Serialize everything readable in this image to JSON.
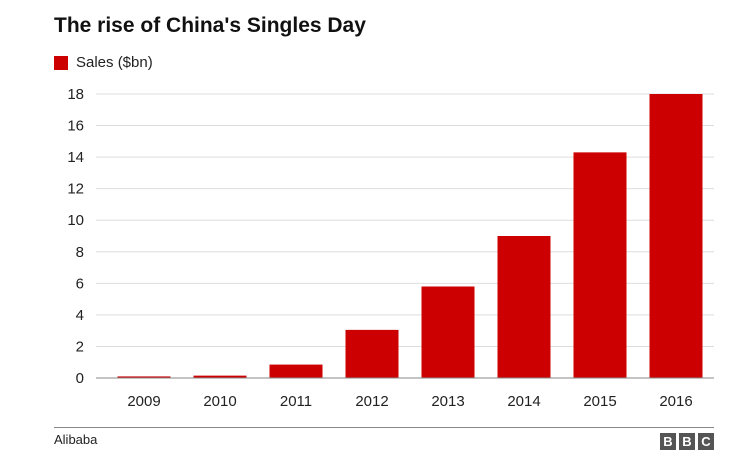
{
  "chart_data": {
    "type": "bar",
    "title": "The rise of China's Singles Day",
    "categories": [
      "2009",
      "2010",
      "2011",
      "2012",
      "2013",
      "2014",
      "2015",
      "2016"
    ],
    "series": [
      {
        "name": "Sales ($bn)",
        "values": [
          0.1,
          0.15,
          0.85,
          3.05,
          5.8,
          9.0,
          14.3,
          18.0
        ]
      }
    ],
    "ylim": [
      0,
      18
    ],
    "yticks": [
      0,
      2,
      4,
      6,
      8,
      10,
      12,
      14,
      16,
      18
    ],
    "grid": true,
    "legend_position": "top-left",
    "bar_color": "#cc0000"
  },
  "source": "Alibaba",
  "logo": {
    "letters": [
      "B",
      "B",
      "C"
    ]
  }
}
